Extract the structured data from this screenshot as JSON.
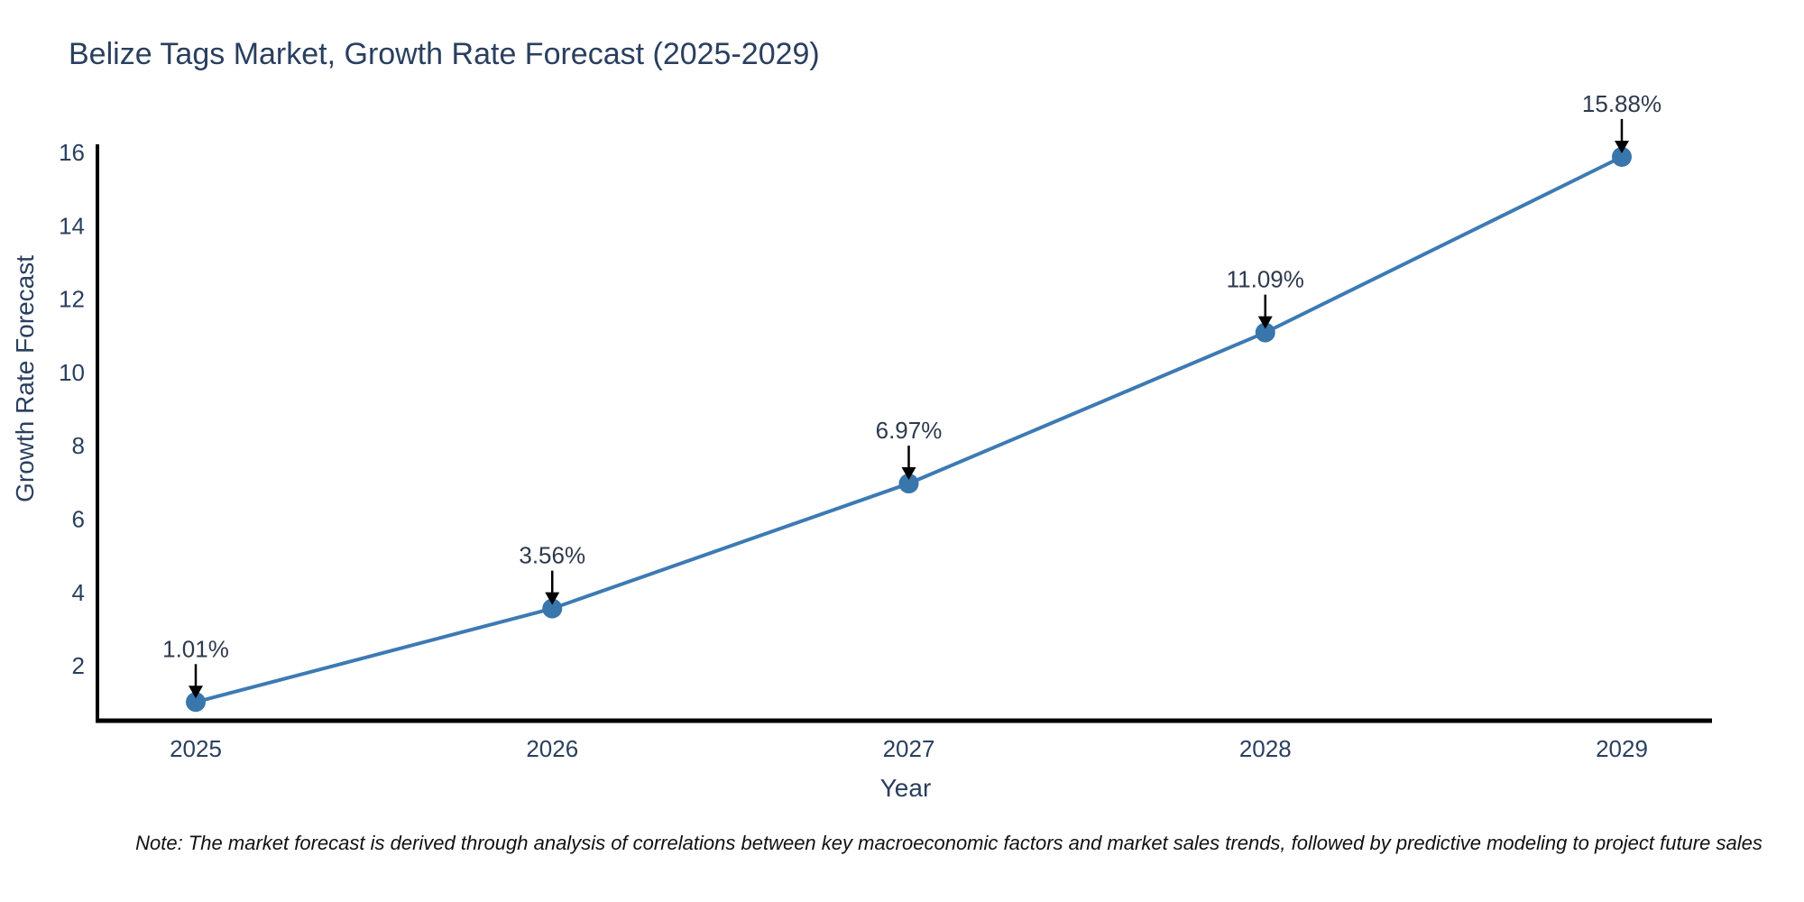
{
  "chart_data": {
    "type": "line",
    "title": "Belize Tags Market, Growth Rate Forecast (2025-2029)",
    "xlabel": "Year",
    "ylabel": "Growth Rate Forecast",
    "note": "Note: The market forecast is derived through analysis of correlations between key macroeconomic factors and market sales trends, followed by predictive modeling to project future sales",
    "categories": [
      "2025",
      "2026",
      "2027",
      "2028",
      "2029"
    ],
    "values": [
      1.01,
      3.56,
      6.97,
      11.09,
      15.88
    ],
    "point_labels": [
      "1.01%",
      "3.56%",
      "6.97%",
      "11.09%",
      "15.88%"
    ],
    "yticks": [
      2,
      4,
      6,
      8,
      10,
      12,
      14,
      16
    ],
    "ylim": [
      0.5,
      16.25
    ],
    "grid": false,
    "legend_position": "none",
    "colors": {
      "line": "#3d7ab4",
      "marker": "#3876ab",
      "axis": "#000000",
      "text": "#2a3f5f",
      "annotation": "#000000",
      "background": "#ffffff"
    }
  }
}
